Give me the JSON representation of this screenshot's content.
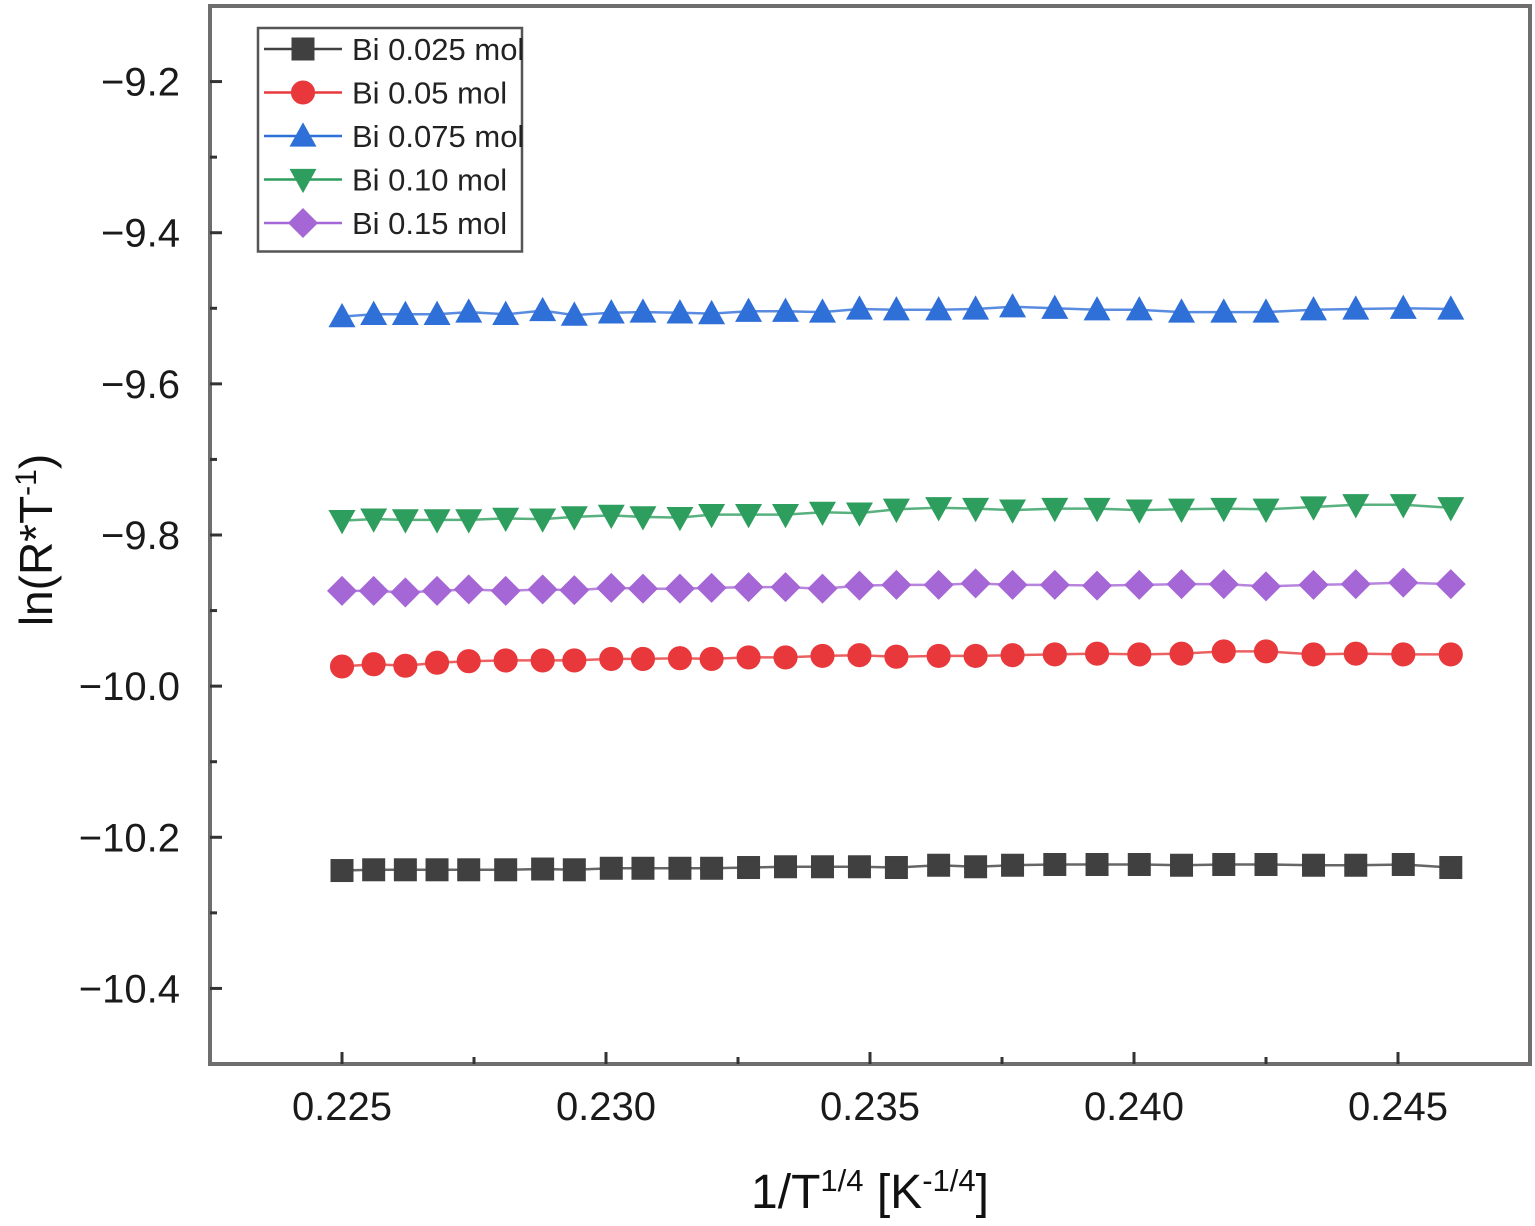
{
  "chart_data": {
    "type": "line",
    "xlabel": {
      "base": "1/T",
      "base_sup": "1/4",
      "unit_open": " [K",
      "unit_sup": "-1/4",
      "unit_close": "]"
    },
    "ylabel": {
      "pre": "ln(R*T",
      "sup": "-1",
      "post": ")"
    },
    "xlim": [
      0.2225,
      0.2475
    ],
    "ylim": [
      -10.5,
      -9.1
    ],
    "x_ticks": [
      0.225,
      0.23,
      0.235,
      0.24,
      0.245
    ],
    "x_tick_labels": [
      "0.225",
      "0.230",
      "0.235",
      "0.240",
      "0.245"
    ],
    "y_ticks": [
      -9.2,
      -9.4,
      -9.6,
      -9.8,
      -10.0,
      -10.2,
      -10.4
    ],
    "y_tick_labels": [
      "−9.2",
      "−9.4",
      "−9.6",
      "−9.8",
      "−10.0",
      "−10.2",
      "−10.4"
    ],
    "grid": false,
    "legend_position": "top-left",
    "x": [
      0.225,
      0.2256,
      0.2262,
      0.2268,
      0.2274,
      0.2281,
      0.2288,
      0.2294,
      0.2301,
      0.2307,
      0.2314,
      0.232,
      0.2327,
      0.2334,
      0.2341,
      0.2348,
      0.2355,
      0.2363,
      0.237,
      0.2377,
      0.2385,
      0.2393,
      0.2401,
      0.2409,
      0.2417,
      0.2425,
      0.2434,
      0.2442,
      0.2451,
      0.246
    ],
    "series": [
      {
        "name": "Bi 0.025 mol",
        "color": "#404040",
        "marker": "square",
        "values": [
          -10.244,
          -10.243,
          -10.243,
          -10.243,
          -10.243,
          -10.243,
          -10.242,
          -10.243,
          -10.241,
          -10.241,
          -10.241,
          -10.241,
          -10.24,
          -10.239,
          -10.239,
          -10.239,
          -10.24,
          -10.237,
          -10.239,
          -10.237,
          -10.236,
          -10.236,
          -10.236,
          -10.237,
          -10.236,
          -10.236,
          -10.237,
          -10.237,
          -10.236,
          -10.24
        ]
      },
      {
        "name": "Bi 0.05 mol",
        "color": "#e8383b",
        "marker": "circle",
        "values": [
          -9.974,
          -9.971,
          -9.973,
          -9.969,
          -9.967,
          -9.966,
          -9.966,
          -9.966,
          -9.964,
          -9.964,
          -9.963,
          -9.964,
          -9.962,
          -9.962,
          -9.96,
          -9.959,
          -9.961,
          -9.96,
          -9.96,
          -9.959,
          -9.958,
          -9.957,
          -9.958,
          -9.957,
          -9.954,
          -9.954,
          -9.958,
          -9.957,
          -9.958,
          -9.958
        ]
      },
      {
        "name": "Bi 0.075 mol",
        "color": "#2f6fd8",
        "marker": "triangle-up",
        "values": [
          -9.511,
          -9.508,
          -9.508,
          -9.508,
          -9.505,
          -9.508,
          -9.503,
          -9.509,
          -9.506,
          -9.505,
          -9.506,
          -9.507,
          -9.504,
          -9.504,
          -9.505,
          -9.501,
          -9.502,
          -9.502,
          -9.501,
          -9.498,
          -9.5,
          -9.502,
          -9.502,
          -9.505,
          -9.505,
          -9.505,
          -9.502,
          -9.501,
          -9.5,
          -9.501
        ]
      },
      {
        "name": "Bi 0.10 mol",
        "color": "#2e9e5e",
        "marker": "triangle-down",
        "values": [
          -9.781,
          -9.779,
          -9.78,
          -9.78,
          -9.78,
          -9.778,
          -9.779,
          -9.776,
          -9.774,
          -9.776,
          -9.777,
          -9.773,
          -9.773,
          -9.773,
          -9.77,
          -9.771,
          -9.766,
          -9.764,
          -9.765,
          -9.767,
          -9.765,
          -9.765,
          -9.767,
          -9.766,
          -9.765,
          -9.766,
          -9.763,
          -9.76,
          -9.76,
          -9.764
        ]
      },
      {
        "name": "Bi 0.15 mol",
        "color": "#a567d6",
        "marker": "diamond",
        "values": [
          -9.874,
          -9.874,
          -9.876,
          -9.874,
          -9.872,
          -9.874,
          -9.872,
          -9.873,
          -9.87,
          -9.871,
          -9.871,
          -9.87,
          -9.869,
          -9.869,
          -9.871,
          -9.867,
          -9.866,
          -9.866,
          -9.864,
          -9.866,
          -9.866,
          -9.867,
          -9.866,
          -9.865,
          -9.865,
          -9.868,
          -9.866,
          -9.865,
          -9.863,
          -9.865
        ]
      }
    ]
  }
}
